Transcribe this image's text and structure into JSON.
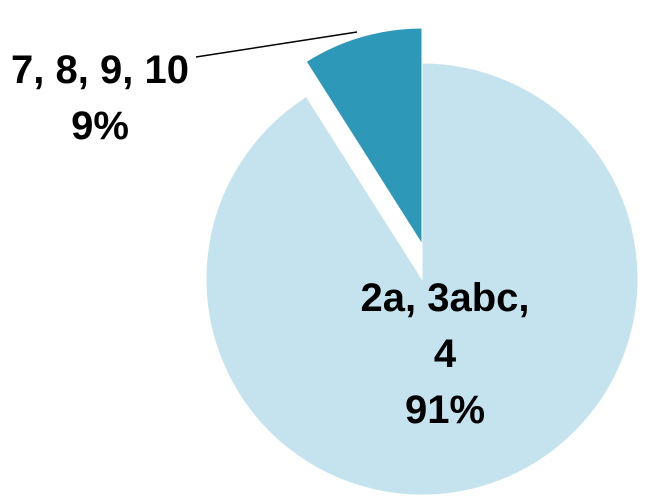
{
  "chart_data": {
    "type": "pie",
    "categories": [
      "2a, 3abc, 4",
      "7, 8, 9, 10"
    ],
    "values": [
      91,
      9
    ],
    "value_labels": [
      "91%",
      "9%"
    ],
    "colors": [
      "#c5e3ee",
      "#2e98b8"
    ]
  }
}
